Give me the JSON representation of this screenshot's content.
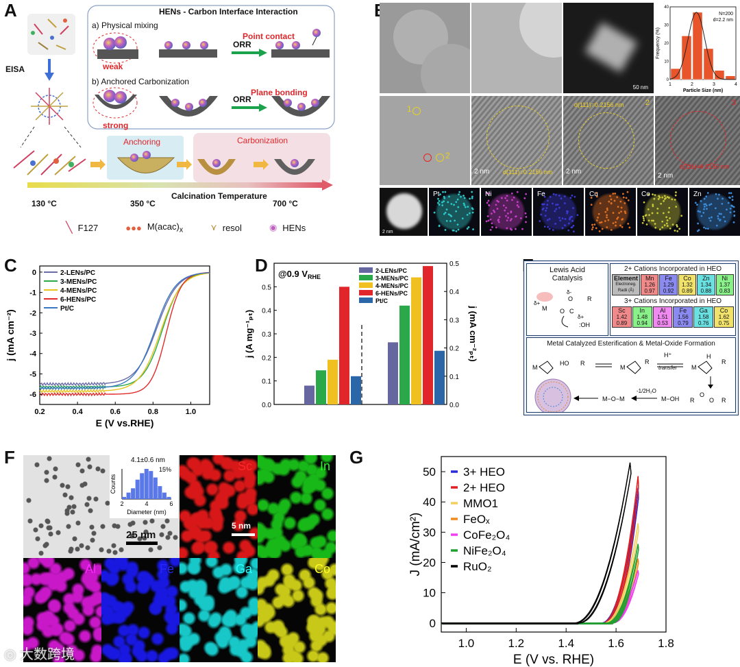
{
  "panel_labels": {
    "A": "A",
    "B": "B",
    "C": "C",
    "D": "D",
    "E": "E",
    "F": "F",
    "G": "G"
  },
  "panelA": {
    "box_title": "HENs - Carbon Interface Interaction",
    "physical_mixing": "a) Physical mixing",
    "weak": "weak",
    "point_contact": "Point contact",
    "orr": "ORR",
    "anchored": "b) Anchored Carbonization",
    "strong": "strong",
    "plane_bonding": "Plane bonding",
    "eisa": "EISA",
    "anchoring": "Anchoring",
    "carbonization": "Carbonization",
    "calc_temp": "Calcination Temperature",
    "t130": "130 °C",
    "t350": "350 °C",
    "t700": "700 °C",
    "legend_f127": "F127",
    "legend_macac": "M(acac)",
    "legend_macac_sub": "x",
    "legend_resol": "resol",
    "legend_hens": "HENs",
    "colors": {
      "arrow_green": "#1aa34a",
      "red_text": "#e0262a",
      "blue_arrow": "#3d6fd6"
    }
  },
  "panelB": {
    "hist": {
      "type": "bar",
      "title": "",
      "xlabel": "Particle Size (nm)",
      "ylabel": "Frequency (%)",
      "annotation_n": "N=200",
      "annotation_d": "d=2.2 nm",
      "x": [
        1.25,
        1.75,
        2.25,
        2.75,
        3.25,
        3.75
      ],
      "values": [
        6,
        24,
        37,
        17,
        5,
        2
      ],
      "xlim": [
        1,
        4
      ],
      "ylim": [
        0,
        40
      ],
      "xticks": [
        "1",
        "2",
        "3",
        "4"
      ],
      "yticks": [
        "0",
        "10",
        "20",
        "30",
        "40"
      ]
    },
    "scale_50nm": "50 nm",
    "scale_2nm": "2 nm",
    "d_spacing": "d(111)=0.2156 nm",
    "site1": "1",
    "site2": "2",
    "site3": "3",
    "eds": [
      "Pt",
      "Ni",
      "Fe",
      "Cu",
      "Co",
      "Zn"
    ],
    "eds_colors": [
      "#2cc7c7",
      "#c43cc4",
      "#3a3ad0",
      "#e07020",
      "#c8c83a",
      "#3a8ad8"
    ]
  },
  "panelC": {
    "chart_data": {
      "type": "line",
      "xlabel": "E (V vs.RHE)",
      "ylabel": "j (mA cm⁻²)",
      "xlim": [
        0.2,
        1.1
      ],
      "ylim": [
        -6.5,
        0.3
      ],
      "xticks": [
        "0.2",
        "0.4",
        "0.6",
        "0.8",
        "1.0"
      ],
      "yticks": [
        "0",
        "-1",
        "-2",
        "-3",
        "-4",
        "-5",
        "-6"
      ],
      "series": [
        {
          "name": "2-LENs/PC",
          "color": "#6a6aa8",
          "jl": -5.5,
          "e_half": 0.82,
          "k": 0.055
        },
        {
          "name": "3-MENs/PC",
          "color": "#2aa84a",
          "jl": -5.65,
          "e_half": 0.85,
          "k": 0.05
        },
        {
          "name": "4-MENs/PC",
          "color": "#e6c21a",
          "jl": -5.85,
          "e_half": 0.84,
          "k": 0.055
        },
        {
          "name": "6-HENs/PC",
          "color": "#e22a2a",
          "jl": -6.0,
          "e_half": 0.87,
          "k": 0.04
        },
        {
          "name": "Pt/C",
          "color": "#3a78c2",
          "jl": -5.7,
          "e_half": 0.81,
          "k": 0.055
        }
      ]
    }
  },
  "panelD": {
    "chart_data": {
      "type": "bar",
      "annotation": "@0.9 V",
      "annotation_sub": "RHE",
      "ylabel_left": "j (A mg⁻¹ₚₜ)",
      "ylabel_right": "j (mA cm⁻²ₚₜ)",
      "ylim_left": [
        0,
        0.6
      ],
      "ylim_right": [
        0,
        0.5
      ],
      "yticks_left": [
        "0.0",
        "0.1",
        "0.2",
        "0.3",
        "0.4",
        "0.5"
      ],
      "yticks_right": [
        "0.0",
        "0.1",
        "0.2",
        "0.3",
        "0.4",
        "0.5"
      ],
      "series": [
        {
          "name": "2-LENs/PC",
          "color": "#6666a0",
          "mass": 0.08,
          "specific": 0.22
        },
        {
          "name": "3-MENs/PC",
          "color": "#2aa84a",
          "mass": 0.145,
          "specific": 0.35
        },
        {
          "name": "4-MENs/PC",
          "color": "#f0c020",
          "mass": 0.19,
          "specific": 0.45
        },
        {
          "name": "6-HENs/PC",
          "color": "#e0262a",
          "mass": 0.5,
          "specific": 0.49
        },
        {
          "name": "Pt/C",
          "color": "#2a66a8",
          "mass": 0.12,
          "specific": 0.19
        }
      ]
    }
  },
  "panelE": {
    "lewis_title": "Lewis Acid Catalysis",
    "cations2_title": "2+ Cations Incorporated in HEO",
    "cations3_title": "3+ Cations Incorporated in HEO",
    "element_header": "Element",
    "electroneg": "Electroneg.",
    "radii": "Radii (Å)",
    "cations2": [
      {
        "el": "Mn",
        "en": "1.26",
        "r": "0.97",
        "color": "#f08a8a"
      },
      {
        "el": "Fe",
        "en": "1.29",
        "r": "0.92",
        "color": "#8a8af0"
      },
      {
        "el": "Co",
        "en": "1.32",
        "r": "0.89",
        "color": "#f0e26a"
      },
      {
        "el": "Zn",
        "en": "1.34",
        "r": "0.88",
        "color": "#6ae0e0"
      },
      {
        "el": "Ni",
        "en": "1.37",
        "r": "0.83",
        "color": "#8af08a"
      }
    ],
    "cations3": [
      {
        "el": "Sc",
        "en": "1.42",
        "r": "0.89",
        "color": "#f08a8a"
      },
      {
        "el": "In",
        "en": "1.48",
        "r": "0.94",
        "color": "#8af08a"
      },
      {
        "el": "Al",
        "en": "1.51",
        "r": "0.53",
        "color": "#f08af0"
      },
      {
        "el": "Fe",
        "en": "1.56",
        "r": "0.79",
        "color": "#8a8af0"
      },
      {
        "el": "Ga",
        "en": "1.58",
        "r": "0.76",
        "color": "#6ae0e0"
      },
      {
        "el": "Co",
        "en": "1.62",
        "r": "0.75",
        "color": "#f0e26a"
      }
    ],
    "mech_title": "Metal Catalyzed Esterification & Metal-Oxide Formation",
    "h_plus": "H⁺",
    "transfer": "transfer",
    "water_loss": "-1/2H₂O",
    "m_o_m": "M−O−M",
    "m_oh": "M−OH",
    "delta_plus": "δ+",
    "delta_minus": "δ-",
    "atom_m": "M",
    "atom_o": "O",
    "atom_c": "C",
    "atom_r": "R",
    "atom_oh": ":OH",
    "atom_h": "H",
    "atom_ho": "HO"
  },
  "panelF": {
    "hist_label": "4.1±0.6 nm",
    "hist_pct": "15%",
    "hist_xlabel": "Diameter (nm)",
    "hist_ylabel": "Counts",
    "hist_xticks": [
      "2",
      "4",
      "6"
    ],
    "hist_values": [
      1,
      3,
      5,
      9,
      12,
      14,
      13,
      10,
      6,
      3,
      1
    ],
    "scale_25nm": "25 nm",
    "scale_5nm": "5 nm",
    "maps": [
      {
        "name": "Sc",
        "color": "#d81818"
      },
      {
        "name": "In",
        "color": "#18b818"
      },
      {
        "name": "Al",
        "color": "#c818c8"
      },
      {
        "name": "Fe",
        "color": "#1818e0"
      },
      {
        "name": "Ga",
        "color": "#18c8c8"
      },
      {
        "name": "Co",
        "color": "#c8c818"
      }
    ]
  },
  "panelG": {
    "chart_data": {
      "type": "line",
      "xlabel": "E (V vs. RHE)",
      "ylabel": "J (mA/cm²)",
      "xlim": [
        0.9,
        1.8
      ],
      "ylim": [
        -3,
        55
      ],
      "xticks": [
        "1.0",
        "1.2",
        "1.4",
        "1.6",
        "1.8"
      ],
      "yticks": [
        "0",
        "10",
        "20",
        "30",
        "40",
        "50"
      ],
      "series": [
        {
          "name": "3+ HEO",
          "color": "#2a2ad8",
          "onset": 1.54,
          "jmax": 46
        },
        {
          "name": "2+ HEO",
          "color": "#e02020",
          "onset": 1.545,
          "jmax": 50
        },
        {
          "name": "MMO1",
          "color": "#f2d060",
          "onset": 1.55,
          "jmax": 34
        },
        {
          "name": "FeOₓ",
          "color": "#f08a20",
          "onset": 1.56,
          "jmax": 22
        },
        {
          "name": "CoFe₂O₄",
          "color": "#f040f0",
          "onset": 1.56,
          "jmax": 18
        },
        {
          "name": "NiFe₂O₄",
          "color": "#20a030",
          "onset": 1.56,
          "jmax": 27
        },
        {
          "name": "RuO₂",
          "color": "#000000",
          "onset": 1.43,
          "jmax": 55
        }
      ]
    }
  },
  "watermark": "大数跨境"
}
